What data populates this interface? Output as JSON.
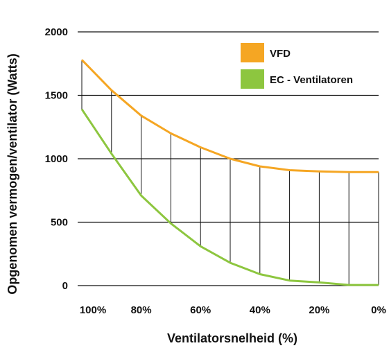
{
  "chart_data": {
    "type": "line",
    "title": "",
    "xlabel": "Ventilatorsnelheid (%)",
    "ylabel": "Opgenomen vermogen/ventilator (Watts)",
    "x_tick_labels": [
      "100%",
      "80%",
      "60%",
      "40%",
      "20%",
      "0%"
    ],
    "x_tick_values": [
      100,
      80,
      60,
      40,
      20,
      0
    ],
    "xlim": [
      100,
      0
    ],
    "ylim": [
      0,
      2000
    ],
    "y_ticks": [
      0,
      500,
      1000,
      1500,
      2000
    ],
    "y_tick_labels": [
      "0",
      "500",
      "1000",
      "1500",
      "2000"
    ],
    "grid": "horizontal",
    "legend_position": "top-right",
    "x": [
      100,
      90,
      80,
      70,
      60,
      50,
      40,
      30,
      20,
      10,
      0
    ],
    "series": [
      {
        "name": "VFD",
        "color": "#F5A623",
        "values": [
          1780,
          1540,
          1340,
          1200,
          1090,
          1000,
          940,
          910,
          900,
          895,
          895
        ]
      },
      {
        "name": "EC - Ventilatoren",
        "color": "#8DC63F",
        "values": [
          1390,
          1040,
          710,
          490,
          310,
          180,
          90,
          40,
          25,
          5,
          5
        ]
      }
    ],
    "difference_lines": true
  }
}
